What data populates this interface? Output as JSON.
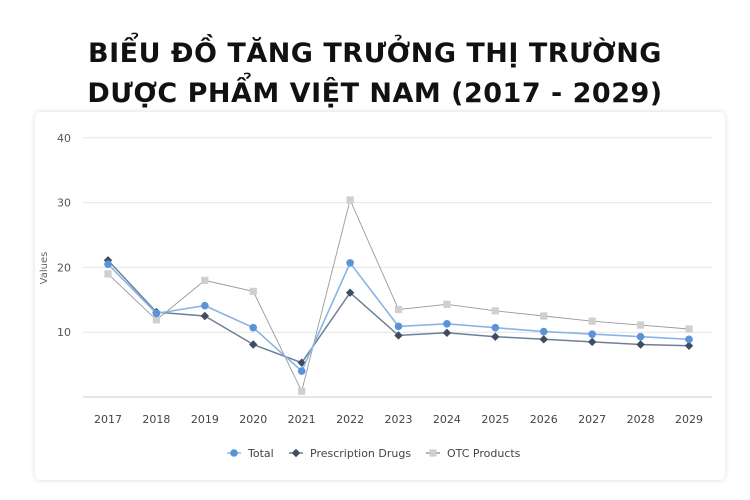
{
  "title_lines": [
    "BIỂU ĐỒ TĂNG TRƯỞNG THỊ TRƯỜNG",
    "DƯỢC PHẨM VIỆT NAM (2017 - 2029)"
  ],
  "chart_data": {
    "type": "line",
    "title": "BIỂU ĐỒ TĂNG TRƯỞNG THỊ TRƯỜNG DƯỢC PHẨM VIỆT NAM (2017 - 2029)",
    "ylabel": "Values",
    "xlabel": "",
    "ylim": [
      0,
      40
    ],
    "yticks": [
      "10",
      "20",
      "30",
      "40"
    ],
    "categories": [
      "2017",
      "2018",
      "2019",
      "2020",
      "2021",
      "2022",
      "2023",
      "2024",
      "2025",
      "2026",
      "2027",
      "2028",
      "2029"
    ],
    "grid": true,
    "legend_position": "bottom",
    "series": [
      {
        "name": "Total",
        "color": "#8ab4e6",
        "marker_color": "#5b93d9",
        "marker": "circle",
        "values": [
          20.5,
          12.9,
          14.1,
          10.7,
          4.0,
          20.7,
          10.9,
          11.3,
          10.7,
          10.1,
          9.7,
          9.3,
          8.9
        ]
      },
      {
        "name": "Prescription Drugs",
        "color": "#6f7f96",
        "marker_color": "#3e4d63",
        "marker": "diamond",
        "values": [
          21.1,
          13.1,
          12.5,
          8.1,
          5.3,
          16.1,
          9.5,
          9.9,
          9.3,
          8.9,
          8.5,
          8.1,
          7.9
        ]
      },
      {
        "name": "OTC Products",
        "color": "#9a9a9a",
        "marker_color": "#cfcfcf",
        "marker": "square",
        "values": [
          19.0,
          11.9,
          18.0,
          16.3,
          0.9,
          30.4,
          13.5,
          14.3,
          13.3,
          12.5,
          11.7,
          11.1,
          10.5
        ]
      }
    ]
  }
}
